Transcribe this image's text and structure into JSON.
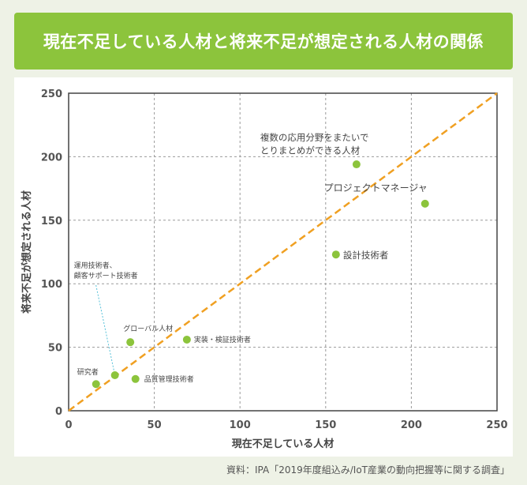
{
  "title": "現在不足している人材と将来不足が想定される人材の関係",
  "source": "資料：IPA「2019年度組込み/IoT産業の動向把握等に関する調査」",
  "colors": {
    "banner": "#8cc43c",
    "point": "#8cc43c",
    "diagonal": "#f0a022",
    "leader": "#55c0d8"
  },
  "chart_data": {
    "type": "scatter",
    "xlabel": "現在不足している人材",
    "ylabel": "将来不足が想定される人材",
    "xlim": [
      0,
      250
    ],
    "ylim": [
      0,
      250
    ],
    "xticks": [
      0,
      50,
      100,
      150,
      200,
      250
    ],
    "yticks": [
      0,
      50,
      100,
      150,
      200,
      250
    ],
    "grid": true,
    "reference_line": {
      "style": "dashed",
      "from": [
        0,
        0
      ],
      "to": [
        250,
        250
      ]
    },
    "points": [
      {
        "label": [
          "研究者"
        ],
        "x": 16,
        "y": 21
      },
      {
        "label": [
          "運用技術者、",
          "顧客サポート技術者"
        ],
        "x": 27,
        "y": 28
      },
      {
        "label": [
          "品質管理技術者"
        ],
        "x": 39,
        "y": 25
      },
      {
        "label": [
          "グローバル人材"
        ],
        "x": 36,
        "y": 54
      },
      {
        "label": [
          "実装・検証技術者"
        ],
        "x": 69,
        "y": 56
      },
      {
        "label": [
          "設計技術者"
        ],
        "x": 156,
        "y": 123
      },
      {
        "label": [
          "複数の応用分野をまたいで",
          "とりまとめができる人材"
        ],
        "x": 168,
        "y": 194
      },
      {
        "label": [
          "プロジェクトマネージャ"
        ],
        "x": 208,
        "y": 163
      }
    ]
  }
}
